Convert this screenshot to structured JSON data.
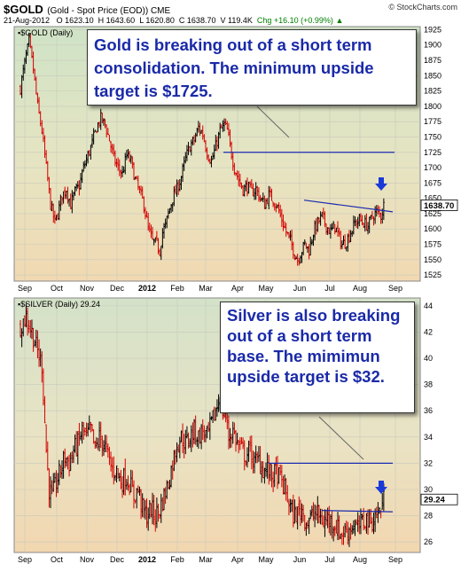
{
  "header": {
    "symbol": "$GOLD",
    "description": "(Gold - Spot Price (EOD)) CME",
    "source": "© StockCharts.com",
    "date": "21-Aug-2012",
    "open": "O 1623.10",
    "high": "H 1643.60",
    "low": "L 1620.80",
    "close": "C 1638.70",
    "volume": "V 119.4K",
    "change": "Chg +16.10 (+0.99%)",
    "change_arrow": "▲"
  },
  "panels": {
    "gold_legend": "▪$GOLD (Daily)",
    "silver_legend": "▪$SILVER (Daily) 29.24",
    "gold_last_label": "1638.70",
    "silver_last_label": "29.24"
  },
  "annotations": {
    "gold_callout": "Gold is breaking out of a short term consolidation.  The minimum upside target is $1725.",
    "silver_callout": "Silver is also breaking out of a short term base. The mimimun upside target is $32."
  },
  "colors": {
    "up": "#000000",
    "down": "#d40000",
    "target_line": "#1a2ab0",
    "arrow": "#1a3ad8",
    "callout_text": "#1a2aa8"
  },
  "chart_data": [
    {
      "type": "line",
      "title": "$GOLD (Daily)",
      "x_ticks": [
        "Sep",
        "Oct",
        "Nov",
        "Dec",
        "2012",
        "Feb",
        "Mar",
        "Apr",
        "May",
        "Jun",
        "Jul",
        "Aug",
        "Sep"
      ],
      "y_ticks": [
        1525,
        1550,
        1575,
        1600,
        1625,
        1650,
        1675,
        1700,
        1725,
        1750,
        1775,
        1800,
        1825,
        1850,
        1875,
        1900,
        1925
      ],
      "ylim": [
        1515,
        1930
      ],
      "last_value": 1638.7,
      "target": 1725,
      "series": [
        {
          "values": [
            [
              0,
              1830
            ],
            [
              3,
              1870
            ],
            [
              6,
              1905
            ],
            [
              9,
              1860
            ],
            [
              12,
              1800
            ],
            [
              15,
              1760
            ],
            [
              18,
              1700
            ],
            [
              21,
              1640
            ],
            [
              24,
              1610
            ],
            [
              26,
              1625
            ],
            [
              29,
              1655
            ],
            [
              32,
              1665
            ],
            [
              35,
              1640
            ],
            [
              38,
              1660
            ],
            [
              41,
              1670
            ],
            [
              44,
              1700
            ],
            [
              47,
              1720
            ],
            [
              50,
              1740
            ],
            [
              53,
              1765
            ],
            [
              56,
              1780
            ],
            [
              59,
              1770
            ],
            [
              62,
              1745
            ],
            [
              65,
              1715
            ],
            [
              68,
              1700
            ],
            [
              71,
              1690
            ],
            [
              74,
              1720
            ],
            [
              77,
              1710
            ],
            [
              80,
              1680
            ],
            [
              83,
              1660
            ],
            [
              86,
              1640
            ],
            [
              89,
              1600
            ],
            [
              92,
              1580
            ],
            [
              95,
              1575
            ],
            [
              97,
              1565
            ],
            [
              99,
              1595
            ],
            [
              101,
              1605
            ],
            [
              103,
              1625
            ],
            [
              106,
              1650
            ],
            [
              109,
              1665
            ],
            [
              112,
              1685
            ],
            [
              115,
              1715
            ],
            [
              118,
              1735
            ],
            [
              121,
              1745
            ],
            [
              124,
              1765
            ],
            [
              127,
              1755
            ],
            [
              130,
              1725
            ],
            [
              133,
              1710
            ],
            [
              136,
              1735
            ],
            [
              139,
              1760
            ],
            [
              142,
              1770
            ],
            [
              144,
              1760
            ],
            [
              146,
              1735
            ],
            [
              149,
              1700
            ],
            [
              152,
              1680
            ],
            [
              155,
              1665
            ],
            [
              158,
              1670
            ],
            [
              161,
              1660
            ],
            [
              164,
              1665
            ],
            [
              167,
              1650
            ],
            [
              170,
              1640
            ],
            [
              173,
              1655
            ],
            [
              176,
              1648
            ],
            [
              179,
              1635
            ],
            [
              182,
              1615
            ],
            [
              185,
              1595
            ],
            [
              188,
              1580
            ],
            [
              191,
              1560
            ],
            [
              193,
              1550
            ],
            [
              195,
              1560
            ],
            [
              198,
              1575
            ],
            [
              201,
              1565
            ],
            [
              204,
              1595
            ],
            [
              207,
              1610
            ],
            [
              210,
              1620
            ],
            [
              213,
              1605
            ],
            [
              216,
              1595
            ],
            [
              219,
              1605
            ],
            [
              222,
              1585
            ],
            [
              224,
              1575
            ],
            [
              227,
              1580
            ],
            [
              230,
              1595
            ],
            [
              233,
              1610
            ],
            [
              236,
              1615
            ],
            [
              239,
              1610
            ],
            [
              242,
              1605
            ],
            [
              245,
              1620
            ],
            [
              248,
              1628
            ],
            [
              251,
              1622
            ],
            [
              253,
              1638.7
            ]
          ]
        }
      ]
    },
    {
      "type": "line",
      "title": "$SILVER (Daily)",
      "x_ticks": [
        "Sep",
        "Oct",
        "Nov",
        "Dec",
        "2012",
        "Feb",
        "Mar",
        "Apr",
        "May",
        "Jun",
        "Jul",
        "Aug",
        "Sep"
      ],
      "y_ticks": [
        26,
        28,
        30,
        32,
        34,
        36,
        38,
        40,
        42,
        44
      ],
      "ylim": [
        25.2,
        44.6
      ],
      "last_value": 29.24,
      "target": 32,
      "series": [
        {
          "values": [
            [
              0,
              42.5
            ],
            [
              4,
              43.2
            ],
            [
              8,
              42.0
            ],
            [
              12,
              40.5
            ],
            [
              15,
              39.5
            ],
            [
              18,
              33.0
            ],
            [
              20,
              30.0
            ],
            [
              22,
              29.5
            ],
            [
              25,
              30.5
            ],
            [
              28,
              31.5
            ],
            [
              31,
              32.5
            ],
            [
              34,
              32.0
            ],
            [
              37,
              33.0
            ],
            [
              40,
              33.5
            ],
            [
              43,
              34.5
            ],
            [
              46,
              34.0
            ],
            [
              49,
              34.5
            ],
            [
              52,
              33.0
            ],
            [
              55,
              34.0
            ],
            [
              58,
              33.5
            ],
            [
              61,
              32.5
            ],
            [
              64,
              31.5
            ],
            [
              67,
              31.5
            ],
            [
              70,
              30.5
            ],
            [
              73,
              31.0
            ],
            [
              76,
              30.5
            ],
            [
              79,
              29.5
            ],
            [
              82,
              30.0
            ],
            [
              85,
              28.5
            ],
            [
              88,
              28.0
            ],
            [
              91,
              28.5
            ],
            [
              94,
              28.0
            ],
            [
              97,
              28.5
            ],
            [
              100,
              29.5
            ],
            [
              103,
              30.5
            ],
            [
              106,
              32.0
            ],
            [
              109,
              33.5
            ],
            [
              112,
              34.0
            ],
            [
              115,
              33.5
            ],
            [
              118,
              34.0
            ],
            [
              121,
              34.5
            ],
            [
              124,
              34.0
            ],
            [
              127,
              34.5
            ],
            [
              130,
              34.0
            ],
            [
              133,
              35.0
            ],
            [
              136,
              36.0
            ],
            [
              139,
              37.2
            ],
            [
              141,
              36.0
            ],
            [
              143,
              35.5
            ],
            [
              145,
              34.0
            ],
            [
              148,
              34.5
            ],
            [
              151,
              33.5
            ],
            [
              154,
              33.0
            ],
            [
              157,
              32.5
            ],
            [
              160,
              33.0
            ],
            [
              163,
              32.0
            ],
            [
              166,
              32.3
            ],
            [
              169,
              31.5
            ],
            [
              172,
              31.5
            ],
            [
              175,
              31.0
            ],
            [
              178,
              31.3
            ],
            [
              181,
              30.8
            ],
            [
              184,
              30.0
            ],
            [
              187,
              29.0
            ],
            [
              190,
              28.0
            ],
            [
              193,
              28.2
            ],
            [
              196,
              28.5
            ],
            [
              199,
              27.5
            ],
            [
              202,
              27.8
            ],
            [
              205,
              28.2
            ],
            [
              208,
              28.0
            ],
            [
              211,
              27.5
            ],
            [
              214,
              27.8
            ],
            [
              217,
              27.5
            ],
            [
              220,
              27.2
            ],
            [
              223,
              26.6
            ],
            [
              226,
              26.8
            ],
            [
              229,
              27.0
            ],
            [
              232,
              27.3
            ],
            [
              235,
              27.0
            ],
            [
              238,
              27.5
            ],
            [
              241,
              27.8
            ],
            [
              244,
              27.5
            ],
            [
              247,
              28.0
            ],
            [
              250,
              28.3
            ],
            [
              253,
              29.24
            ]
          ]
        }
      ]
    }
  ]
}
